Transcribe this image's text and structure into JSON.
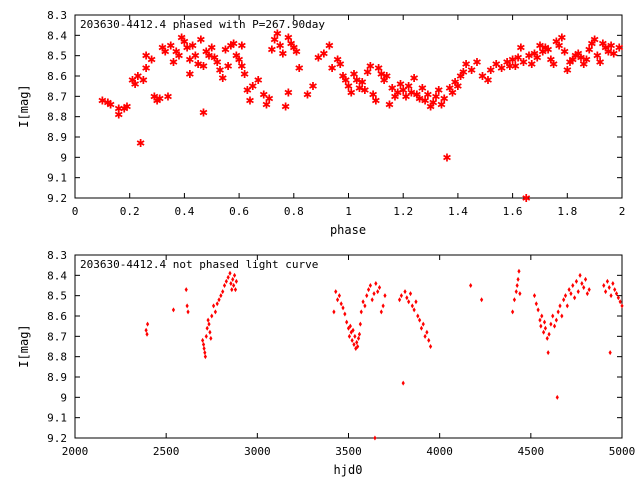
{
  "colors": {
    "points": "#ff0000",
    "frame": "#000000",
    "background": "#ffffff"
  },
  "chart_data": [
    {
      "type": "scatter",
      "title": "203630-4412.4 phased with P=267.90day",
      "xlabel": "phase",
      "ylabel": "I[mag]",
      "xlim": [
        0,
        2
      ],
      "ylim": [
        8.3,
        9.2
      ],
      "y_inverted": true,
      "grid": false,
      "xticks": [
        0,
        0.2,
        0.4,
        0.6,
        0.8,
        1,
        1.2,
        1.4,
        1.6,
        1.8,
        2
      ],
      "yticks": [
        8.3,
        8.4,
        8.5,
        8.6,
        8.7,
        8.8,
        8.9,
        9,
        9.1,
        9.2
      ],
      "marker": "star",
      "points": [
        [
          0.1,
          8.72
        ],
        [
          0.12,
          8.73
        ],
        [
          0.13,
          8.74
        ],
        [
          0.16,
          8.79
        ],
        [
          0.16,
          8.76
        ],
        [
          0.18,
          8.76
        ],
        [
          0.19,
          8.75
        ],
        [
          0.21,
          8.62
        ],
        [
          0.22,
          8.64
        ],
        [
          0.23,
          8.6
        ],
        [
          0.24,
          8.93
        ],
        [
          0.25,
          8.62
        ],
        [
          0.26,
          8.56
        ],
        [
          0.26,
          8.5
        ],
        [
          0.28,
          8.52
        ],
        [
          0.29,
          8.7
        ],
        [
          0.3,
          8.72
        ],
        [
          0.31,
          8.71
        ],
        [
          0.32,
          8.46
        ],
        [
          0.33,
          8.48
        ],
        [
          0.34,
          8.7
        ],
        [
          0.35,
          8.45
        ],
        [
          0.36,
          8.53
        ],
        [
          0.37,
          8.48
        ],
        [
          0.38,
          8.5
        ],
        [
          0.39,
          8.41
        ],
        [
          0.4,
          8.43
        ],
        [
          0.41,
          8.46
        ],
        [
          0.42,
          8.52
        ],
        [
          0.42,
          8.59
        ],
        [
          0.43,
          8.45
        ],
        [
          0.44,
          8.5
        ],
        [
          0.45,
          8.54
        ],
        [
          0.46,
          8.42
        ],
        [
          0.47,
          8.78
        ],
        [
          0.47,
          8.55
        ],
        [
          0.48,
          8.48
        ],
        [
          0.49,
          8.5
        ],
        [
          0.5,
          8.46
        ],
        [
          0.51,
          8.51
        ],
        [
          0.52,
          8.53
        ],
        [
          0.53,
          8.57
        ],
        [
          0.54,
          8.61
        ],
        [
          0.55,
          8.47
        ],
        [
          0.56,
          8.55
        ],
        [
          0.57,
          8.45
        ],
        [
          0.58,
          8.44
        ],
        [
          0.59,
          8.5
        ],
        [
          0.6,
          8.52
        ],
        [
          0.61,
          8.45
        ],
        [
          0.61,
          8.55
        ],
        [
          0.62,
          8.59
        ],
        [
          0.63,
          8.67
        ],
        [
          0.64,
          8.72
        ],
        [
          0.65,
          8.65
        ],
        [
          0.67,
          8.62
        ],
        [
          0.69,
          8.69
        ],
        [
          0.7,
          8.74
        ],
        [
          0.71,
          8.71
        ],
        [
          0.72,
          8.47
        ],
        [
          0.73,
          8.42
        ],
        [
          0.74,
          8.39
        ],
        [
          0.75,
          8.45
        ],
        [
          0.76,
          8.49
        ],
        [
          0.77,
          8.75
        ],
        [
          0.78,
          8.68
        ],
        [
          0.78,
          8.41
        ],
        [
          0.79,
          8.44
        ],
        [
          0.8,
          8.46
        ],
        [
          0.81,
          8.48
        ],
        [
          0.82,
          8.56
        ],
        [
          0.85,
          8.69
        ],
        [
          0.87,
          8.65
        ],
        [
          0.89,
          8.51
        ],
        [
          0.91,
          8.49
        ],
        [
          0.93,
          8.45
        ],
        [
          0.94,
          8.56
        ],
        [
          0.96,
          8.52
        ],
        [
          0.97,
          8.54
        ],
        [
          0.98,
          8.6
        ],
        [
          0.99,
          8.62
        ],
        [
          1.0,
          8.65
        ],
        [
          1.01,
          8.68
        ],
        [
          1.02,
          8.59
        ],
        [
          1.03,
          8.62
        ],
        [
          1.04,
          8.66
        ],
        [
          1.05,
          8.63
        ],
        [
          1.06,
          8.67
        ],
        [
          1.07,
          8.58
        ],
        [
          1.08,
          8.55
        ],
        [
          1.09,
          8.69
        ],
        [
          1.1,
          8.72
        ],
        [
          1.11,
          8.56
        ],
        [
          1.12,
          8.59
        ],
        [
          1.13,
          8.62
        ],
        [
          1.14,
          8.6
        ],
        [
          1.15,
          8.74
        ],
        [
          1.16,
          8.66
        ],
        [
          1.17,
          8.7
        ],
        [
          1.18,
          8.68
        ],
        [
          1.19,
          8.64
        ],
        [
          1.2,
          8.67
        ],
        [
          1.21,
          8.7
        ],
        [
          1.22,
          8.65
        ],
        [
          1.23,
          8.68
        ],
        [
          1.24,
          8.61
        ],
        [
          1.25,
          8.69
        ],
        [
          1.26,
          8.71
        ],
        [
          1.27,
          8.66
        ],
        [
          1.28,
          8.72
        ],
        [
          1.29,
          8.69
        ],
        [
          1.3,
          8.75
        ],
        [
          1.31,
          8.73
        ],
        [
          1.32,
          8.7
        ],
        [
          1.33,
          8.67
        ],
        [
          1.34,
          8.74
        ],
        [
          1.35,
          8.71
        ],
        [
          1.36,
          9.0
        ],
        [
          1.37,
          8.66
        ],
        [
          1.38,
          8.68
        ],
        [
          1.39,
          8.63
        ],
        [
          1.4,
          8.65
        ],
        [
          1.41,
          8.6
        ],
        [
          1.42,
          8.58
        ],
        [
          1.43,
          8.54
        ],
        [
          1.45,
          8.57
        ],
        [
          1.47,
          8.53
        ],
        [
          1.49,
          8.6
        ],
        [
          1.51,
          8.62
        ],
        [
          1.52,
          8.57
        ],
        [
          1.54,
          8.54
        ],
        [
          1.56,
          8.56
        ],
        [
          1.58,
          8.53
        ],
        [
          1.59,
          8.55
        ],
        [
          1.6,
          8.52
        ],
        [
          1.61,
          8.55
        ],
        [
          1.62,
          8.51
        ],
        [
          1.63,
          8.46
        ],
        [
          1.64,
          8.53
        ],
        [
          1.65,
          9.2
        ],
        [
          1.66,
          8.5
        ],
        [
          1.67,
          8.54
        ],
        [
          1.68,
          8.49
        ],
        [
          1.69,
          8.51
        ],
        [
          1.7,
          8.45
        ],
        [
          1.71,
          8.48
        ],
        [
          1.72,
          8.46
        ],
        [
          1.73,
          8.47
        ],
        [
          1.74,
          8.52
        ],
        [
          1.75,
          8.54
        ],
        [
          1.76,
          8.43
        ],
        [
          1.77,
          8.45
        ],
        [
          1.78,
          8.41
        ],
        [
          1.79,
          8.48
        ],
        [
          1.8,
          8.57
        ],
        [
          1.81,
          8.53
        ],
        [
          1.82,
          8.52
        ],
        [
          1.83,
          8.5
        ],
        [
          1.84,
          8.49
        ],
        [
          1.85,
          8.51
        ],
        [
          1.86,
          8.54
        ],
        [
          1.87,
          8.52
        ],
        [
          1.88,
          8.47
        ],
        [
          1.89,
          8.44
        ],
        [
          1.9,
          8.42
        ],
        [
          1.91,
          8.5
        ],
        [
          1.92,
          8.53
        ],
        [
          1.93,
          8.44
        ],
        [
          1.94,
          8.46
        ],
        [
          1.95,
          8.48
        ],
        [
          1.96,
          8.45
        ],
        [
          1.97,
          8.49
        ],
        [
          1.99,
          8.46
        ]
      ]
    },
    {
      "type": "scatter",
      "title": "203630-4412.4 not phased light curve",
      "xlabel": "hjd0",
      "ylabel": "I[mag]",
      "xlim": [
        2000,
        5000
      ],
      "ylim": [
        8.3,
        9.2
      ],
      "y_inverted": true,
      "grid": false,
      "xticks": [
        2000,
        2500,
        3000,
        3500,
        4000,
        4500,
        5000
      ],
      "yticks": [
        8.3,
        8.4,
        8.5,
        8.6,
        8.7,
        8.8,
        8.9,
        9,
        9.1,
        9.2
      ],
      "marker": "diamond",
      "points": [
        [
          2390,
          8.67
        ],
        [
          2395,
          8.69
        ],
        [
          2398,
          8.64
        ],
        [
          2540,
          8.57
        ],
        [
          2610,
          8.47
        ],
        [
          2615,
          8.55
        ],
        [
          2620,
          8.58
        ],
        [
          2700,
          8.72
        ],
        [
          2705,
          8.74
        ],
        [
          2708,
          8.76
        ],
        [
          2712,
          8.78
        ],
        [
          2715,
          8.8
        ],
        [
          2720,
          8.7
        ],
        [
          2725,
          8.66
        ],
        [
          2730,
          8.62
        ],
        [
          2735,
          8.64
        ],
        [
          2740,
          8.68
        ],
        [
          2745,
          8.71
        ],
        [
          2750,
          8.6
        ],
        [
          2760,
          8.55
        ],
        [
          2770,
          8.58
        ],
        [
          2780,
          8.54
        ],
        [
          2790,
          8.52
        ],
        [
          2800,
          8.5
        ],
        [
          2810,
          8.48
        ],
        [
          2820,
          8.45
        ],
        [
          2830,
          8.43
        ],
        [
          2840,
          8.41
        ],
        [
          2850,
          8.39
        ],
        [
          2855,
          8.44
        ],
        [
          2860,
          8.47
        ],
        [
          2865,
          8.42
        ],
        [
          2870,
          8.45
        ],
        [
          2875,
          8.4
        ],
        [
          2880,
          8.47
        ],
        [
          2885,
          8.43
        ],
        [
          3420,
          8.58
        ],
        [
          3430,
          8.48
        ],
        [
          3440,
          8.52
        ],
        [
          3450,
          8.5
        ],
        [
          3460,
          8.54
        ],
        [
          3470,
          8.56
        ],
        [
          3480,
          8.59
        ],
        [
          3490,
          8.63
        ],
        [
          3500,
          8.66
        ],
        [
          3505,
          8.7
        ],
        [
          3510,
          8.65
        ],
        [
          3515,
          8.68
        ],
        [
          3520,
          8.72
        ],
        [
          3525,
          8.67
        ],
        [
          3530,
          8.74
        ],
        [
          3535,
          8.7
        ],
        [
          3540,
          8.76
        ],
        [
          3545,
          8.73
        ],
        [
          3550,
          8.75
        ],
        [
          3555,
          8.71
        ],
        [
          3560,
          8.69
        ],
        [
          3565,
          8.64
        ],
        [
          3570,
          8.58
        ],
        [
          3580,
          8.53
        ],
        [
          3590,
          8.55
        ],
        [
          3600,
          8.5
        ],
        [
          3610,
          8.47
        ],
        [
          3620,
          8.45
        ],
        [
          3630,
          8.52
        ],
        [
          3640,
          8.49
        ],
        [
          3645,
          9.2
        ],
        [
          3650,
          8.44
        ],
        [
          3660,
          8.48
        ],
        [
          3670,
          8.46
        ],
        [
          3680,
          8.58
        ],
        [
          3690,
          8.55
        ],
        [
          3700,
          8.5
        ],
        [
          3780,
          8.52
        ],
        [
          3790,
          8.5
        ],
        [
          3800,
          8.93
        ],
        [
          3810,
          8.48
        ],
        [
          3820,
          8.51
        ],
        [
          3830,
          8.53
        ],
        [
          3840,
          8.49
        ],
        [
          3850,
          8.55
        ],
        [
          3860,
          8.57
        ],
        [
          3870,
          8.53
        ],
        [
          3880,
          8.6
        ],
        [
          3890,
          8.62
        ],
        [
          3900,
          8.66
        ],
        [
          3910,
          8.64
        ],
        [
          3920,
          8.7
        ],
        [
          3930,
          8.68
        ],
        [
          3940,
          8.72
        ],
        [
          3950,
          8.75
        ],
        [
          4170,
          8.45
        ],
        [
          4230,
          8.52
        ],
        [
          4400,
          8.58
        ],
        [
          4410,
          8.52
        ],
        [
          4420,
          8.48
        ],
        [
          4425,
          8.45
        ],
        [
          4430,
          8.42
        ],
        [
          4435,
          8.38
        ],
        [
          4440,
          8.49
        ],
        [
          4520,
          8.5
        ],
        [
          4530,
          8.54
        ],
        [
          4540,
          8.57
        ],
        [
          4550,
          8.62
        ],
        [
          4555,
          8.65
        ],
        [
          4560,
          8.6
        ],
        [
          4570,
          8.68
        ],
        [
          4575,
          8.63
        ],
        [
          4580,
          8.66
        ],
        [
          4590,
          8.71
        ],
        [
          4595,
          8.78
        ],
        [
          4600,
          8.69
        ],
        [
          4610,
          8.64
        ],
        [
          4620,
          8.6
        ],
        [
          4630,
          8.65
        ],
        [
          4640,
          8.62
        ],
        [
          4645,
          9.0
        ],
        [
          4650,
          8.58
        ],
        [
          4660,
          8.55
        ],
        [
          4670,
          8.6
        ],
        [
          4680,
          8.52
        ],
        [
          4690,
          8.5
        ],
        [
          4700,
          8.55
        ],
        [
          4710,
          8.47
        ],
        [
          4720,
          8.49
        ],
        [
          4730,
          8.45
        ],
        [
          4740,
          8.51
        ],
        [
          4750,
          8.43
        ],
        [
          4760,
          8.48
        ],
        [
          4770,
          8.4
        ],
        [
          4780,
          8.44
        ],
        [
          4790,
          8.46
        ],
        [
          4800,
          8.42
        ],
        [
          4810,
          8.49
        ],
        [
          4820,
          8.47
        ],
        [
          4900,
          8.45
        ],
        [
          4910,
          8.48
        ],
        [
          4920,
          8.43
        ],
        [
          4930,
          8.46
        ],
        [
          4935,
          8.78
        ],
        [
          4940,
          8.5
        ],
        [
          4950,
          8.44
        ],
        [
          4960,
          8.47
        ],
        [
          4970,
          8.49
        ],
        [
          4980,
          8.51
        ],
        [
          4990,
          8.53
        ],
        [
          5000,
          8.55
        ]
      ]
    }
  ]
}
